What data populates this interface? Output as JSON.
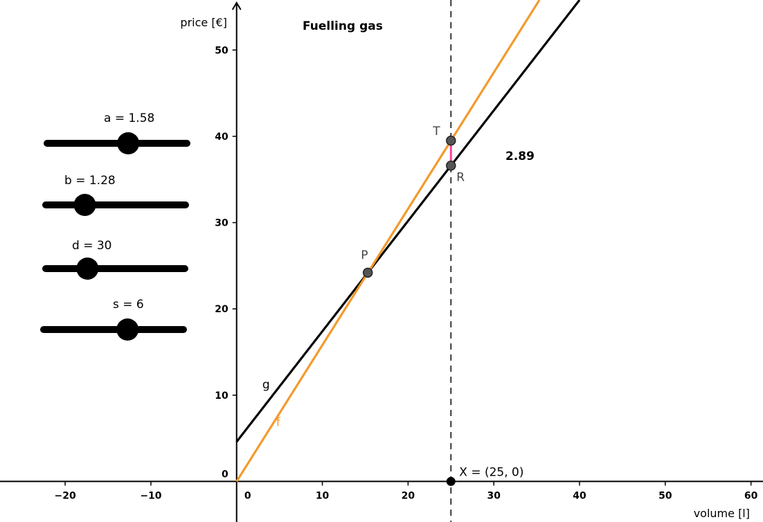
{
  "title": "Fuelling gas",
  "x_axis_label": "volume [l]",
  "y_axis_label": "price [€]",
  "x_ticks": [
    -20,
    -10,
    0,
    10,
    20,
    30,
    40,
    50,
    60
  ],
  "y_ticks": [
    0,
    10,
    20,
    30,
    40,
    50
  ],
  "xlim": [
    -27.6,
    61.4
  ],
  "ylim": [
    -4.7,
    55.8
  ],
  "line_f": {
    "label": "f",
    "slope": 1.58,
    "intercept": 0,
    "color": "#f39a2d"
  },
  "line_g": {
    "label": "g",
    "slope": 1.28,
    "intercept": 4.6,
    "color": "#000000"
  },
  "points": [
    {
      "label": "P",
      "x": 15.3,
      "y": 24.2,
      "color": "#555555"
    },
    {
      "label": "T",
      "x": 25,
      "y": 39.5,
      "color": "#555555"
    },
    {
      "label": "R",
      "x": 25,
      "y": 36.6,
      "color": "#555555"
    }
  ],
  "point_x": {
    "label": "X = (25, 0)",
    "x": 25,
    "y": 0,
    "color": "#000000"
  },
  "vertical_line_x": 25,
  "segment_color": "#ff3fa0",
  "difference_label": "2.89",
  "sliders": [
    {
      "label": "a = 1.58",
      "name": "a",
      "value": 1.58,
      "min": 1.0,
      "max": 2.0
    },
    {
      "label": "b = 1.28",
      "name": "b",
      "value": 1.28,
      "min": 1.0,
      "max": 2.0
    },
    {
      "label": "d = 30",
      "name": "d",
      "value": 30,
      "min": 0,
      "max": 100
    },
    {
      "label": "s = 6",
      "name": "s",
      "value": 6,
      "min": 0,
      "max": 10
    }
  ]
}
